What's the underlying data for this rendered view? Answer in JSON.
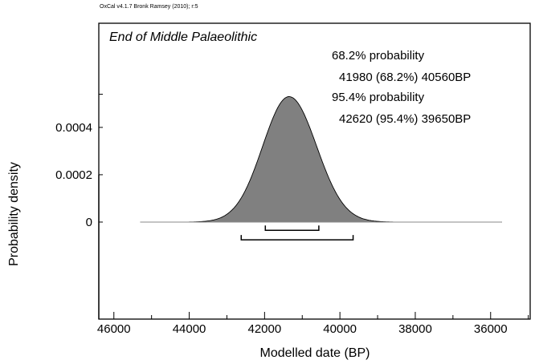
{
  "chart_data": {
    "type": "area",
    "credit": "OxCal v4.1.7 Bronk Ramsey (2010); r:5",
    "title": "End of Middle Palaeolithic",
    "xlabel": "Modelled date (BP)",
    "ylabel": "Probability density",
    "x_reversed": true,
    "xlim": [
      46400,
      34950
    ],
    "ylim": [
      -0.00041,
      0.00084
    ],
    "x_ticks": [
      46000,
      44000,
      42000,
      40000,
      38000,
      36000
    ],
    "x_tick_labels": [
      "46000",
      "44000",
      "42000",
      "40000",
      "38000",
      "36000"
    ],
    "y_ticks": [
      0,
      0.0002,
      0.0004
    ],
    "y_tick_labels": [
      "0",
      "0.0002",
      "0.0004"
    ],
    "series": [
      {
        "distribution": "gaussian",
        "peak_x": 41350,
        "peak_density": 0.00053,
        "sigma_left": 700,
        "sigma_right": 730,
        "x_range": [
          45300,
          35700
        ],
        "color": "#808080"
      }
    ],
    "annotations": [
      "68.2% probability",
      "41980 (68.2%) 40560BP",
      "95.4% probability",
      "42620 (95.4%) 39650BP"
    ],
    "ranges": [
      {
        "level": "68.2%",
        "from": 41980,
        "to": 40560
      },
      {
        "level": "95.4%",
        "from": 42620,
        "to": 39650
      }
    ]
  }
}
